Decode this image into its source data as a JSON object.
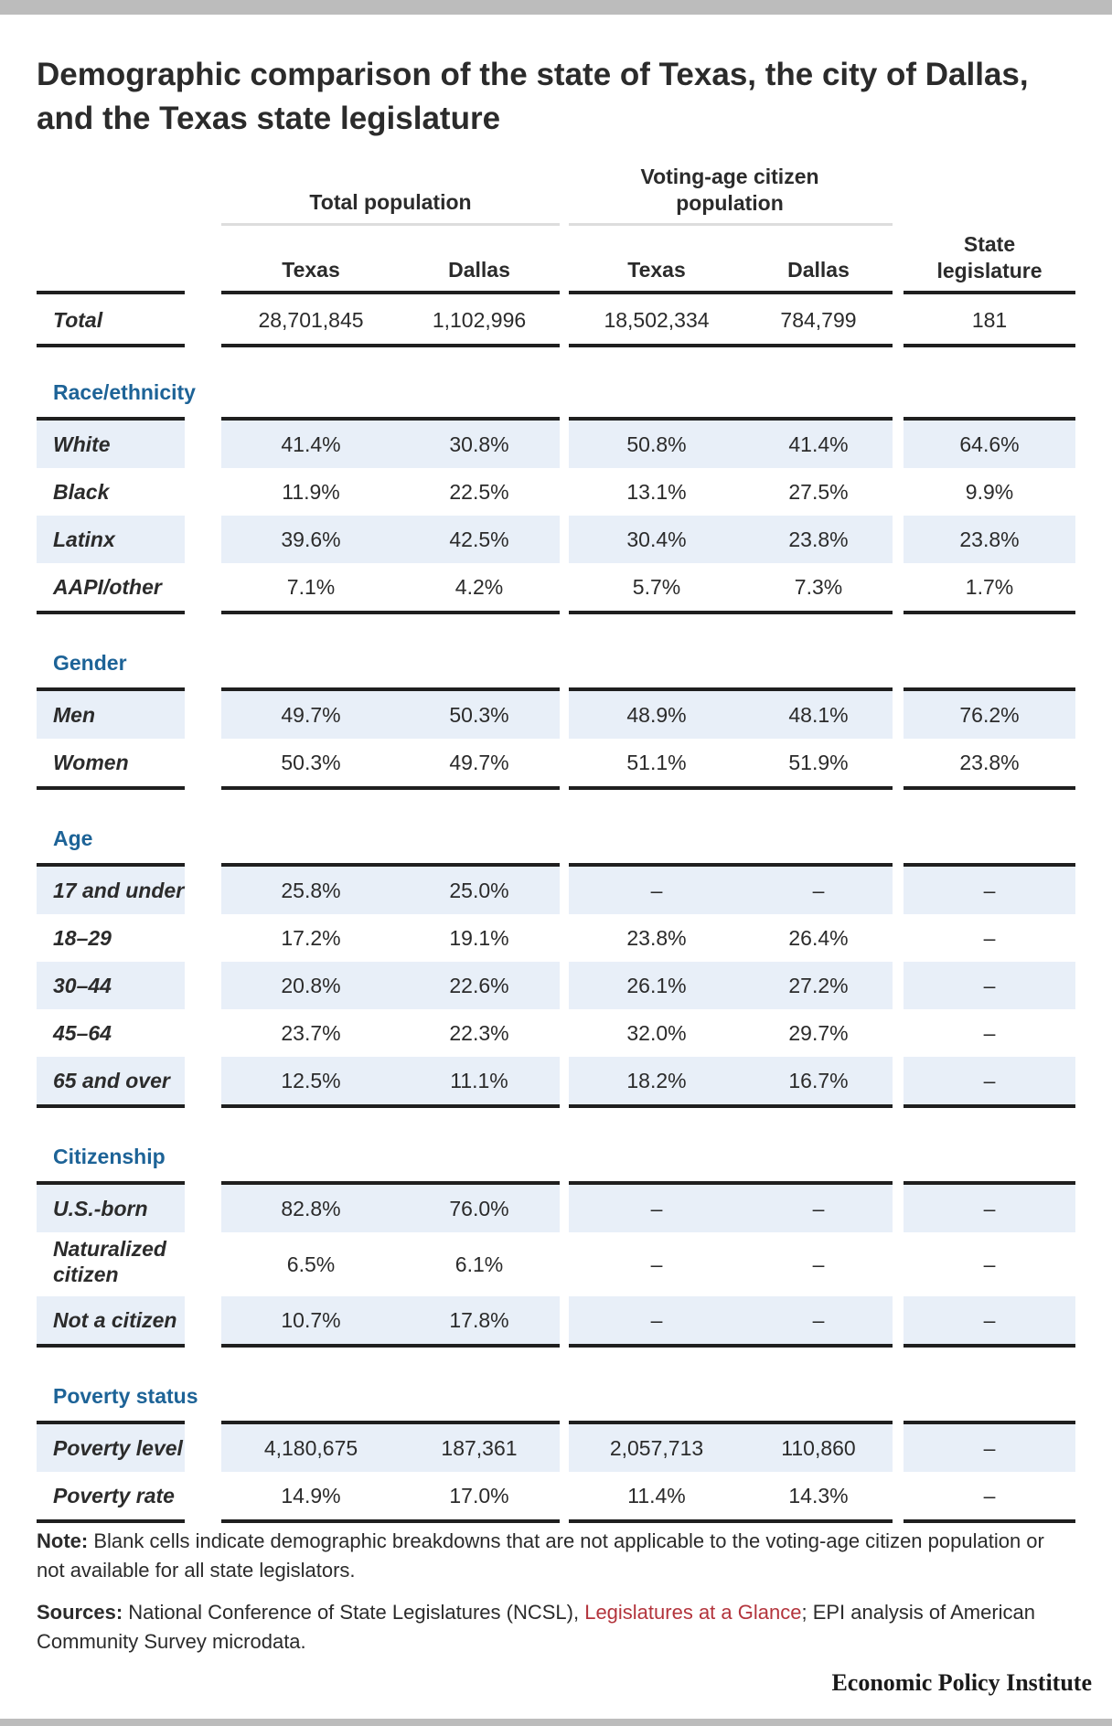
{
  "title": "Demographic comparison of the state of Texas, the city of Dallas, and the Texas state legislature",
  "groups": {
    "total_population": "Total population",
    "voting_age": "Voting-age citizen population"
  },
  "columns": {
    "tp_texas": "Texas",
    "tp_dallas": "Dallas",
    "va_texas": "Texas",
    "va_dallas": "Dallas",
    "legislature": "State legislature"
  },
  "total": {
    "label": "Total",
    "values": [
      "28,701,845",
      "1,102,996",
      "18,502,334",
      "784,799",
      "181"
    ]
  },
  "race": {
    "heading": "Race/ethnicity",
    "rows": [
      {
        "label": "White",
        "values": [
          "41.4%",
          "30.8%",
          "50.8%",
          "41.4%",
          "64.6%"
        ]
      },
      {
        "label": "Black",
        "values": [
          "11.9%",
          "22.5%",
          "13.1%",
          "27.5%",
          "9.9%"
        ]
      },
      {
        "label": "Latinx",
        "values": [
          "39.6%",
          "42.5%",
          "30.4%",
          "23.8%",
          "23.8%"
        ]
      },
      {
        "label": "AAPI/other",
        "values": [
          "7.1%",
          "4.2%",
          "5.7%",
          "7.3%",
          "1.7%"
        ]
      }
    ]
  },
  "gender": {
    "heading": "Gender",
    "rows": [
      {
        "label": "Men",
        "values": [
          "49.7%",
          "50.3%",
          "48.9%",
          "48.1%",
          "76.2%"
        ]
      },
      {
        "label": "Women",
        "values": [
          "50.3%",
          "49.7%",
          "51.1%",
          "51.9%",
          "23.8%"
        ]
      }
    ]
  },
  "age": {
    "heading": "Age",
    "rows": [
      {
        "label": "17 and under",
        "values": [
          "25.8%",
          "25.0%",
          "–",
          "–",
          "–"
        ]
      },
      {
        "label": "18–29",
        "values": [
          "17.2%",
          "19.1%",
          "23.8%",
          "26.4%",
          "–"
        ]
      },
      {
        "label": "30–44",
        "values": [
          "20.8%",
          "22.6%",
          "26.1%",
          "27.2%",
          "–"
        ]
      },
      {
        "label": "45–64",
        "values": [
          "23.7%",
          "22.3%",
          "32.0%",
          "29.7%",
          "–"
        ]
      },
      {
        "label": "65 and over",
        "values": [
          "12.5%",
          "11.1%",
          "18.2%",
          "16.7%",
          "–"
        ]
      }
    ]
  },
  "citizenship": {
    "heading": "Citizenship",
    "rows": [
      {
        "label": "U.S.-born",
        "values": [
          "82.8%",
          "76.0%",
          "–",
          "–",
          "–"
        ]
      },
      {
        "label": "Naturalized citizen",
        "values": [
          "6.5%",
          "6.1%",
          "–",
          "–",
          "–"
        ]
      },
      {
        "label": "Not a citizen",
        "values": [
          "10.7%",
          "17.8%",
          "–",
          "–",
          "–"
        ]
      }
    ]
  },
  "poverty": {
    "heading": "Poverty status",
    "rows": [
      {
        "label": "Poverty level",
        "values": [
          "4,180,675",
          "187,361",
          "2,057,713",
          "110,860",
          "–"
        ]
      },
      {
        "label": "Poverty rate",
        "values": [
          "14.9%",
          "17.0%",
          "11.4%",
          "14.3%",
          "–"
        ]
      }
    ]
  },
  "note": {
    "label": "Note:",
    "text": " Blank cells indicate demographic breakdowns that are not applicable to the voting-age citizen population or not available for all state legislators."
  },
  "sources": {
    "label": "Sources:",
    "text_before": " National Conference of State Legislatures (NCSL), ",
    "link": "Legislatures at a Glance",
    "text_after": "; EPI analysis of American Community Survey microdata."
  },
  "brand": "Economic Policy Institute",
  "colors": {
    "section": "#1d6397",
    "band": "#e8eff8",
    "link": "#b3343c"
  }
}
